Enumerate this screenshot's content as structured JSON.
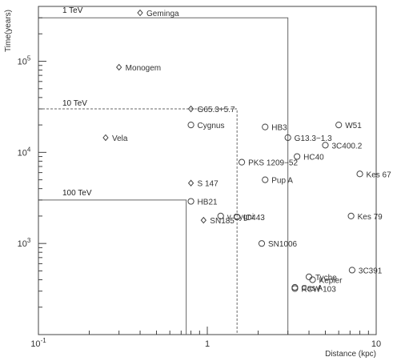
{
  "chart_data": {
    "type": "scatter",
    "title": "",
    "xlabel": "Distance (kpc)",
    "ylabel": "Time(years)",
    "x_scale": "log",
    "y_scale": "log",
    "xlim": [
      0.1,
      10
    ],
    "ylim": [
      100,
      400000
    ],
    "x_ticks": [
      {
        "value": 0.1,
        "label": "10",
        "exp": "-1"
      },
      {
        "value": 1,
        "label": "1",
        "exp": ""
      },
      {
        "value": 10,
        "label": "10",
        "exp": ""
      }
    ],
    "y_ticks": [
      {
        "value": 1000,
        "label": "10",
        "exp": "3"
      },
      {
        "value": 10000,
        "label": "10",
        "exp": "4"
      },
      {
        "value": 100000,
        "label": "10",
        "exp": "5"
      }
    ],
    "energy_regions": [
      {
        "label": "1 TeV",
        "x_max": 3.0,
        "y_max": 300000,
        "style": "solid"
      },
      {
        "label": "10 TeV",
        "x_max": 1.5,
        "y_max": 30000,
        "style": "dashed"
      },
      {
        "label": "100 TeV",
        "x_max": 0.75,
        "y_max": 3000,
        "style": "solid"
      }
    ],
    "series": [
      {
        "marker": "diamond",
        "points": [
          {
            "name": "Geminga",
            "x": 0.4,
            "y": 340000
          },
          {
            "name": "Monogem",
            "x": 0.3,
            "y": 86000
          },
          {
            "name": "G65.3+5.7",
            "x": 0.8,
            "y": 30000
          },
          {
            "name": "Vela",
            "x": 0.25,
            "y": 14500
          },
          {
            "name": "S 147",
            "x": 0.8,
            "y": 4600
          },
          {
            "name": "SN185",
            "x": 0.95,
            "y": 1800
          }
        ]
      },
      {
        "marker": "circle",
        "points": [
          {
            "name": "Cygnus",
            "x": 0.8,
            "y": 20000
          },
          {
            "name": "HB3",
            "x": 2.2,
            "y": 19000
          },
          {
            "name": "W51",
            "x": 6.0,
            "y": 20000
          },
          {
            "name": "G13.3−1.3",
            "x": 3.0,
            "y": 14500
          },
          {
            "name": "3C400.2",
            "x": 5.0,
            "y": 12000
          },
          {
            "name": "HC40",
            "x": 3.4,
            "y": 9000
          },
          {
            "name": "PKS 1209−52",
            "x": 1.6,
            "y": 7800
          },
          {
            "name": "Kes 67",
            "x": 8.0,
            "y": 5800
          },
          {
            "name": "Pup A",
            "x": 2.2,
            "y": 5000
          },
          {
            "name": "HB21",
            "x": 0.8,
            "y": 2900
          },
          {
            "name": "IC443",
            "x": 1.5,
            "y": 1950
          },
          {
            "name": "γ Cygni",
            "x": 1.2,
            "y": 2000
          },
          {
            "name": "Kes 79",
            "x": 7.1,
            "y": 2000
          },
          {
            "name": "SN1006",
            "x": 2.1,
            "y": 1000
          },
          {
            "name": "3C391",
            "x": 7.2,
            "y": 510
          },
          {
            "name": "Tycho",
            "x": 4.0,
            "y": 430
          },
          {
            "name": "Kepler",
            "x": 4.2,
            "y": 400
          },
          {
            "name": "Cas A",
            "x": 3.3,
            "y": 330
          },
          {
            "name": "RCW 103",
            "x": 3.3,
            "y": 320
          }
        ]
      }
    ]
  }
}
